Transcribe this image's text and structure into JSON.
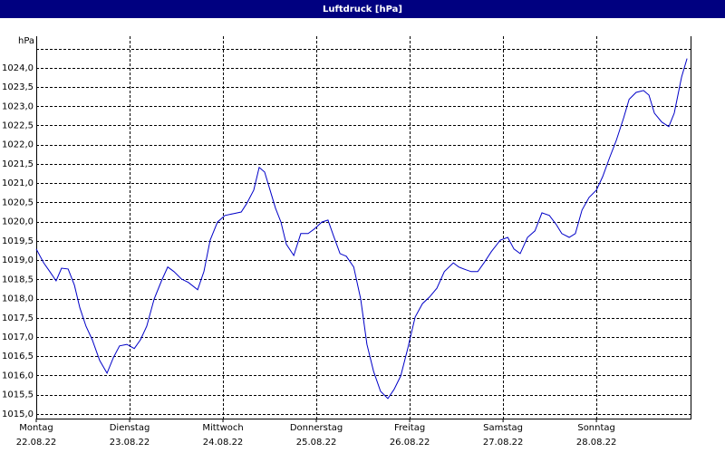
{
  "chart_data": {
    "type": "line",
    "title": "Luftdruck [hPa]",
    "y_unit": "hPa",
    "xlim": [
      0,
      168.2
    ],
    "ylim": [
      1014.88,
      1024.82
    ],
    "xticks": [
      {
        "value": 0,
        "label": "Montag",
        "date": "22.08.22"
      },
      {
        "value": 24,
        "label": "Dienstag",
        "date": "23.08.22"
      },
      {
        "value": 48,
        "label": "Mittwoch",
        "date": "24.08.22"
      },
      {
        "value": 72,
        "label": "Donnerstag",
        "date": "25.08.22"
      },
      {
        "value": 96,
        "label": "Freitag",
        "date": "26.08.22"
      },
      {
        "value": 120,
        "label": "Samstag",
        "date": "27.08.22"
      },
      {
        "value": 144,
        "label": "Sonntag",
        "date": "28.08.22"
      }
    ],
    "yticks": [
      {
        "value": 1015.0,
        "label": "1015,0"
      },
      {
        "value": 1015.5,
        "label": "1015,5"
      },
      {
        "value": 1016.0,
        "label": "1016,0"
      },
      {
        "value": 1016.5,
        "label": "1016,5"
      },
      {
        "value": 1017.0,
        "label": "1017,0"
      },
      {
        "value": 1017.5,
        "label": "1017,5"
      },
      {
        "value": 1018.0,
        "label": "1018,0"
      },
      {
        "value": 1018.5,
        "label": "1018,5"
      },
      {
        "value": 1019.0,
        "label": "1019,0"
      },
      {
        "value": 1019.5,
        "label": "1019,5"
      },
      {
        "value": 1020.0,
        "label": "1020,0"
      },
      {
        "value": 1020.5,
        "label": "1020,5"
      },
      {
        "value": 1021.0,
        "label": "1021,0"
      },
      {
        "value": 1021.5,
        "label": "1021,5"
      },
      {
        "value": 1022.0,
        "label": "1022,0"
      },
      {
        "value": 1022.5,
        "label": "1022,5"
      },
      {
        "value": 1023.0,
        "label": "1023,0"
      },
      {
        "value": 1023.5,
        "label": "1023,5"
      },
      {
        "value": 1024.0,
        "label": "1024,0"
      }
    ],
    "ygrid": [
      1015.0,
      1015.5,
      1016.0,
      1016.5,
      1017.0,
      1017.5,
      1018.0,
      1018.5,
      1019.0,
      1019.5,
      1020.0,
      1020.5,
      1021.0,
      1021.5,
      1022.0,
      1022.5,
      1023.0,
      1023.5,
      1024.0,
      1024.5
    ],
    "grid": true,
    "series": [
      {
        "name": "Luftdruck",
        "color": "#0000c8",
        "x": [
          0,
          1.9,
          3.5,
          5.1,
          6.5,
          8.2,
          9.8,
          11.2,
          12.8,
          14.4,
          16.3,
          18.2,
          19.8,
          21.4,
          23.3,
          25.2,
          26.8,
          28.4,
          30.3,
          32.2,
          33.8,
          35.4,
          37.3,
          39.1,
          41.5,
          43.1,
          44.7,
          46.6,
          48.5,
          50.8,
          52.7,
          54.1,
          55.9,
          57.3,
          58.7,
          60.1,
          61.5,
          62.9,
          64.3,
          66.2,
          68.0,
          69.9,
          71.5,
          73.4,
          75.0,
          76.4,
          78.1,
          79.7,
          81.6,
          83.4,
          85.0,
          86.7,
          88.5,
          90.4,
          92.0,
          93.7,
          95.5,
          97.4,
          99.3,
          101.1,
          103.0,
          104.9,
          107.2,
          108.6,
          110.4,
          111.8,
          113.5,
          115.1,
          117.0,
          119.3,
          121.2,
          122.8,
          124.4,
          126.3,
          128.2,
          130.0,
          131.9,
          133.7,
          135.1,
          137.0,
          138.6,
          140.3,
          142.1,
          144.0,
          145.6,
          147.3,
          149.1,
          151.0,
          152.4,
          154.2,
          156.1,
          157.5,
          158.9,
          160.8,
          162.6,
          164.0,
          165.9,
          167.3
        ],
        "values": [
          1019.29,
          1018.93,
          1018.7,
          1018.46,
          1018.79,
          1018.77,
          1018.35,
          1017.76,
          1017.28,
          1016.93,
          1016.39,
          1016.06,
          1016.46,
          1016.77,
          1016.81,
          1016.7,
          1016.93,
          1017.28,
          1017.99,
          1018.46,
          1018.82,
          1018.7,
          1018.51,
          1018.42,
          1018.23,
          1018.7,
          1019.52,
          1019.99,
          1020.16,
          1020.21,
          1020.25,
          1020.47,
          1020.82,
          1021.41,
          1021.29,
          1020.82,
          1020.35,
          1019.99,
          1019.41,
          1019.12,
          1019.69,
          1019.69,
          1019.81,
          1019.99,
          1020.04,
          1019.64,
          1019.17,
          1019.1,
          1018.82,
          1017.99,
          1016.81,
          1016.11,
          1015.59,
          1015.4,
          1015.64,
          1015.99,
          1016.7,
          1017.52,
          1017.87,
          1018.04,
          1018.27,
          1018.7,
          1018.93,
          1018.82,
          1018.75,
          1018.7,
          1018.7,
          1018.93,
          1019.22,
          1019.52,
          1019.59,
          1019.29,
          1019.17,
          1019.59,
          1019.76,
          1020.23,
          1020.16,
          1019.92,
          1019.69,
          1019.59,
          1019.69,
          1020.3,
          1020.63,
          1020.82,
          1021.17,
          1021.64,
          1022.11,
          1022.7,
          1023.18,
          1023.36,
          1023.41,
          1023.29,
          1022.82,
          1022.59,
          1022.47,
          1022.82,
          1023.76,
          1024.24
        ]
      }
    ]
  }
}
